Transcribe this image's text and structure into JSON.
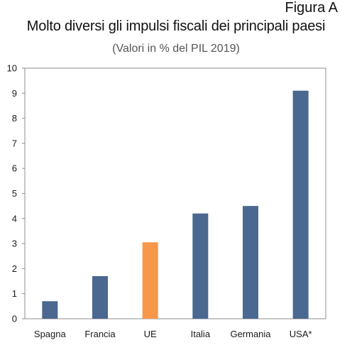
{
  "figure_label": "Figura A",
  "chart_data": {
    "type": "bar",
    "title": "Molto diversi gli impulsi fiscali dei principali paesi",
    "subtitle": "(Valori in % del PIL 2019)",
    "categories": [
      "Spagna",
      "Francia",
      "UE",
      "Italia",
      "Germania",
      "USA*"
    ],
    "values": [
      0.7,
      1.7,
      3.05,
      4.2,
      4.5,
      9.1
    ],
    "colors": [
      "#4a6890",
      "#4a6890",
      "#f7974a",
      "#4a6890",
      "#4a6890",
      "#4a6890"
    ],
    "ylim": [
      0,
      10
    ],
    "yticks": [
      0,
      1,
      2,
      3,
      4,
      5,
      6,
      7,
      8,
      9,
      10
    ],
    "xlabel": "",
    "ylabel": "",
    "grid": false,
    "legend": "none"
  }
}
